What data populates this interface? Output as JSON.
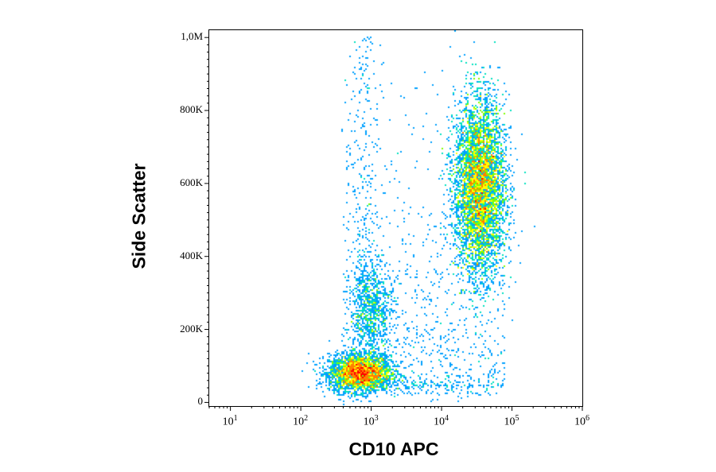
{
  "chart_data": {
    "type": "scatter",
    "subtype": "flow-cytometry-density-dot-plot",
    "title": "",
    "xlabel": "CD10 APC",
    "ylabel": "Side Scatter",
    "x_scale": "log",
    "xlim": [
      5,
      1000000
    ],
    "ylim": [
      -10000,
      1020000
    ],
    "x_ticks": [
      {
        "base": "10",
        "exp": "1",
        "value": 10
      },
      {
        "base": "10",
        "exp": "2",
        "value": 100
      },
      {
        "base": "10",
        "exp": "3",
        "value": 1000
      },
      {
        "base": "10",
        "exp": "4",
        "value": 10000
      },
      {
        "base": "10",
        "exp": "5",
        "value": 100000
      },
      {
        "base": "10",
        "exp": "6",
        "value": 1000000
      }
    ],
    "y_ticks": [
      {
        "label": "0",
        "value": 0
      },
      {
        "label": "200K",
        "value": 200000
      },
      {
        "label": "400K",
        "value": 400000
      },
      {
        "label": "600K",
        "value": 600000
      },
      {
        "label": "800K",
        "value": 800000
      },
      {
        "label": "1,0M",
        "value": 1000000
      }
    ],
    "populations": [
      {
        "center_x": 700,
        "center_y": 80000,
        "spread_log_x": 0.22,
        "spread_y": 25000,
        "count": 3200,
        "peak_density": "high"
      },
      {
        "center_x": 1000,
        "center_y": 250000,
        "spread_log_x": 0.15,
        "spread_y": 70000,
        "count": 900,
        "peak_density": "low"
      },
      {
        "center_x": 35000,
        "center_y": 590000,
        "spread_log_x": 0.18,
        "spread_y": 120000,
        "count": 6500,
        "peak_density": "medium-high"
      }
    ],
    "color_scale": [
      "#1a1aff",
      "#00a0ff",
      "#00e0c0",
      "#7fff00",
      "#ffff00",
      "#ff8000",
      "#ff0000"
    ],
    "grid": false
  }
}
